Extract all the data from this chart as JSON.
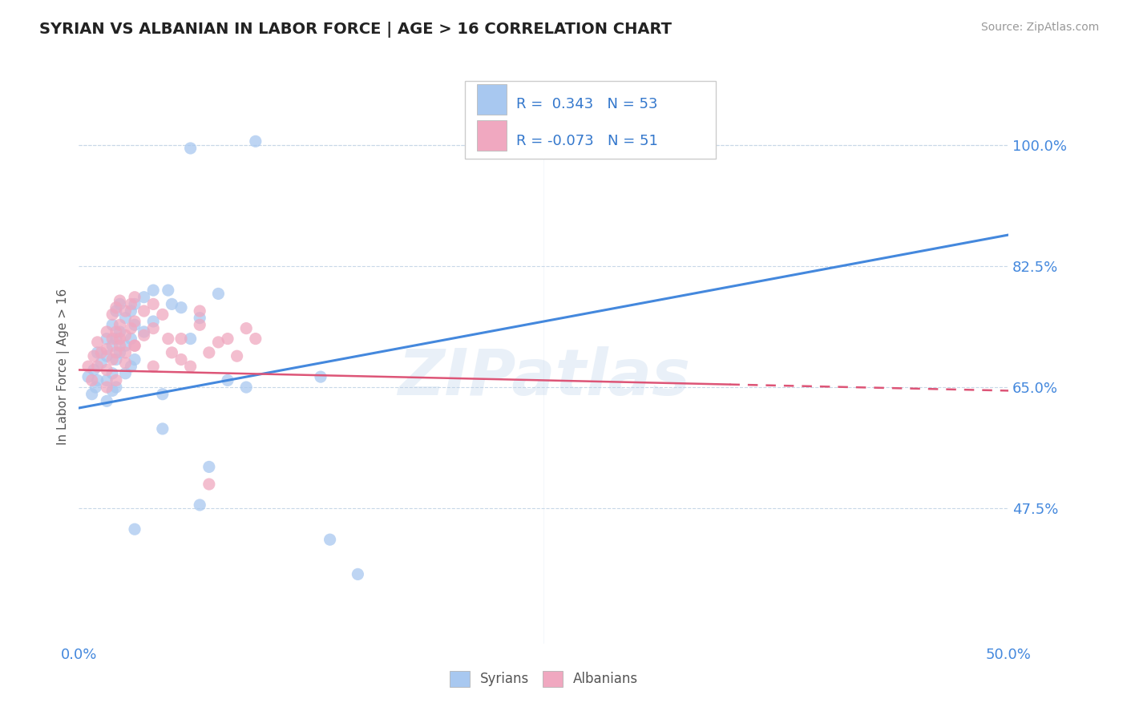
{
  "title": "SYRIAN VS ALBANIAN IN LABOR FORCE | AGE > 16 CORRELATION CHART",
  "source_text": "Source: ZipAtlas.com",
  "ylabel": "In Labor Force | Age > 16",
  "xlim": [
    0.0,
    0.5
  ],
  "ylim": [
    0.28,
    1.08
  ],
  "xtick_labels": [
    "0.0%",
    "50.0%"
  ],
  "xtick_values": [
    0.0,
    0.5
  ],
  "ytick_labels": [
    "47.5%",
    "65.0%",
    "82.5%",
    "100.0%"
  ],
  "ytick_values": [
    0.475,
    0.65,
    0.825,
    1.0
  ],
  "syrian_color": "#a8c8f0",
  "albanian_color": "#f0a8c0",
  "trend_syrian_color": "#4488dd",
  "trend_albanian_color": "#dd5577",
  "R_syrian": 0.343,
  "N_syrian": 53,
  "R_albanian": -0.073,
  "N_albanian": 51,
  "watermark": "ZIPatlas",
  "legend_labels": [
    "Syrians",
    "Albanians"
  ],
  "syrian_trend": [
    0.0,
    0.62,
    0.5,
    0.87
  ],
  "albanian_trend": [
    0.0,
    0.675,
    0.5,
    0.645
  ],
  "syrian_dots": [
    [
      0.005,
      0.665
    ],
    [
      0.007,
      0.64
    ],
    [
      0.008,
      0.675
    ],
    [
      0.009,
      0.65
    ],
    [
      0.01,
      0.7
    ],
    [
      0.01,
      0.66
    ],
    [
      0.012,
      0.685
    ],
    [
      0.015,
      0.72
    ],
    [
      0.015,
      0.695
    ],
    [
      0.015,
      0.66
    ],
    [
      0.015,
      0.63
    ],
    [
      0.018,
      0.74
    ],
    [
      0.018,
      0.71
    ],
    [
      0.018,
      0.67
    ],
    [
      0.018,
      0.645
    ],
    [
      0.02,
      0.76
    ],
    [
      0.02,
      0.72
    ],
    [
      0.02,
      0.69
    ],
    [
      0.02,
      0.65
    ],
    [
      0.022,
      0.77
    ],
    [
      0.022,
      0.73
    ],
    [
      0.022,
      0.7
    ],
    [
      0.025,
      0.75
    ],
    [
      0.025,
      0.71
    ],
    [
      0.025,
      0.67
    ],
    [
      0.028,
      0.76
    ],
    [
      0.028,
      0.72
    ],
    [
      0.028,
      0.68
    ],
    [
      0.03,
      0.77
    ],
    [
      0.03,
      0.74
    ],
    [
      0.03,
      0.69
    ],
    [
      0.035,
      0.78
    ],
    [
      0.035,
      0.73
    ],
    [
      0.04,
      0.79
    ],
    [
      0.04,
      0.745
    ],
    [
      0.045,
      0.64
    ],
    [
      0.045,
      0.59
    ],
    [
      0.048,
      0.79
    ],
    [
      0.05,
      0.77
    ],
    [
      0.055,
      0.765
    ],
    [
      0.06,
      0.72
    ],
    [
      0.065,
      0.75
    ],
    [
      0.075,
      0.785
    ],
    [
      0.08,
      0.66
    ],
    [
      0.09,
      0.65
    ],
    [
      0.095,
      1.005
    ],
    [
      0.06,
      0.995
    ],
    [
      0.13,
      0.665
    ],
    [
      0.135,
      0.43
    ],
    [
      0.03,
      0.445
    ],
    [
      0.15,
      0.38
    ],
    [
      0.07,
      0.535
    ],
    [
      0.065,
      0.48
    ]
  ],
  "albanian_dots": [
    [
      0.005,
      0.68
    ],
    [
      0.007,
      0.66
    ],
    [
      0.008,
      0.695
    ],
    [
      0.01,
      0.715
    ],
    [
      0.01,
      0.68
    ],
    [
      0.012,
      0.7
    ],
    [
      0.015,
      0.73
    ],
    [
      0.015,
      0.705
    ],
    [
      0.015,
      0.675
    ],
    [
      0.015,
      0.65
    ],
    [
      0.018,
      0.755
    ],
    [
      0.018,
      0.72
    ],
    [
      0.018,
      0.69
    ],
    [
      0.02,
      0.765
    ],
    [
      0.02,
      0.73
    ],
    [
      0.02,
      0.7
    ],
    [
      0.02,
      0.66
    ],
    [
      0.022,
      0.775
    ],
    [
      0.022,
      0.74
    ],
    [
      0.022,
      0.71
    ],
    [
      0.025,
      0.76
    ],
    [
      0.025,
      0.725
    ],
    [
      0.025,
      0.685
    ],
    [
      0.028,
      0.77
    ],
    [
      0.028,
      0.735
    ],
    [
      0.03,
      0.78
    ],
    [
      0.03,
      0.745
    ],
    [
      0.03,
      0.71
    ],
    [
      0.035,
      0.76
    ],
    [
      0.035,
      0.725
    ],
    [
      0.04,
      0.77
    ],
    [
      0.04,
      0.735
    ],
    [
      0.045,
      0.755
    ],
    [
      0.048,
      0.72
    ],
    [
      0.05,
      0.7
    ],
    [
      0.055,
      0.69
    ],
    [
      0.06,
      0.68
    ],
    [
      0.065,
      0.74
    ],
    [
      0.07,
      0.7
    ],
    [
      0.075,
      0.715
    ],
    [
      0.08,
      0.72
    ],
    [
      0.085,
      0.695
    ],
    [
      0.09,
      0.735
    ],
    [
      0.095,
      0.72
    ],
    [
      0.065,
      0.76
    ],
    [
      0.055,
      0.72
    ],
    [
      0.07,
      0.51
    ],
    [
      0.04,
      0.68
    ],
    [
      0.03,
      0.71
    ],
    [
      0.025,
      0.7
    ],
    [
      0.022,
      0.72
    ]
  ]
}
